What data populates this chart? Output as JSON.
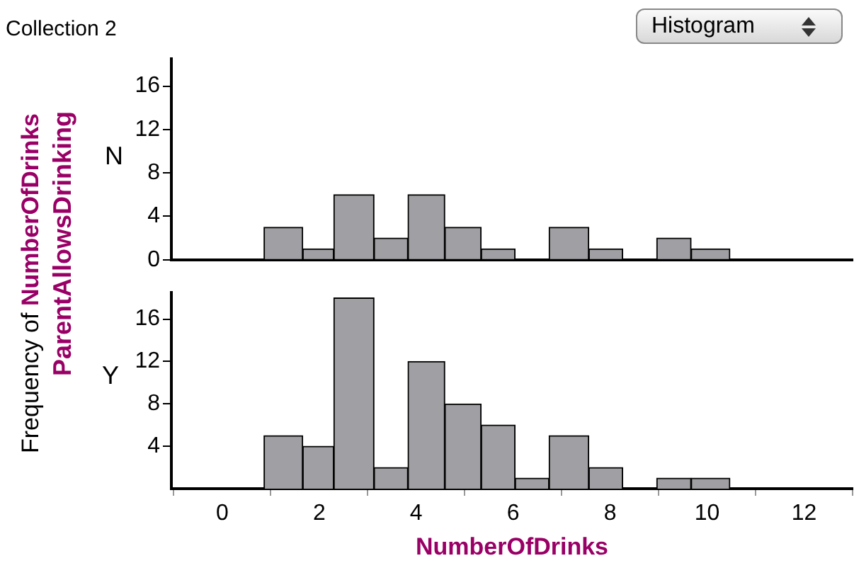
{
  "chart_data": [
    {
      "type": "histogram",
      "title": "Collection 2",
      "ylabel": "N",
      "annotations": [
        "Histogram",
        "Frequency of NumberOfDrinks",
        "ParentAllowsDrinking"
      ],
      "bins": [
        0.86,
        1.66,
        2.3,
        3.13,
        3.83,
        4.59,
        5.34,
        6.04,
        6.74,
        7.56,
        8.26,
        8.96,
        9.67,
        10.47
      ],
      "values": [
        3,
        1,
        6,
        2,
        6,
        3,
        1,
        0,
        3,
        1,
        0,
        2,
        1
      ],
      "color": "#a0a0a4",
      "xlim": [
        -1.05,
        13
      ],
      "xticks": [
        0,
        2,
        4,
        6,
        8,
        10,
        12
      ],
      "ylim": [
        0,
        18.5
      ],
      "yticks": [
        0,
        4,
        8,
        12,
        16
      ],
      "tick_labels": "y"
    },
    {
      "type": "histogram",
      "ylabel": "Y",
      "xlabel": "NumberOfDrinks",
      "bins": [
        0.86,
        1.66,
        2.3,
        3.13,
        3.83,
        4.59,
        5.34,
        6.04,
        6.74,
        7.56,
        8.26,
        8.96,
        9.67,
        10.47
      ],
      "values": [
        5,
        4,
        18,
        2,
        12,
        8,
        6,
        1,
        5,
        2,
        0,
        1,
        1
      ],
      "color": "#a0a0a4",
      "xlim": [
        -1.05,
        13
      ],
      "xticks": [
        0,
        2,
        4,
        6,
        8,
        10,
        12
      ],
      "ylim": [
        0,
        18.5
      ],
      "yticks": [
        4,
        8,
        12,
        16
      ]
    }
  ]
}
